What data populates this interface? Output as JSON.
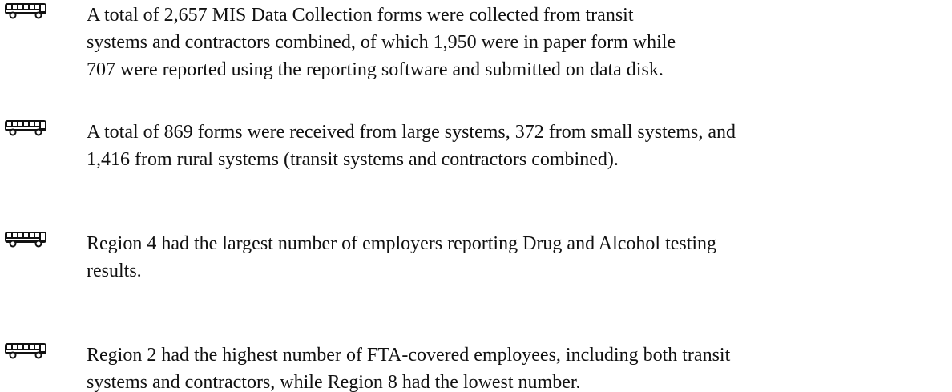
{
  "bullets": [
    {
      "lines": [
        "A total of 2,657 MIS Data Collection forms were collected from transit",
        "systems and contractors combined, of which 1,950 were in paper form while",
        "707 were reported using the reporting software and submitted on data disk."
      ]
    },
    {
      "lines": [
        "A total of 869 forms were received from large systems, 372 from small systems, and",
        "1,416 from rural systems (transit systems and contractors combined)."
      ]
    },
    {
      "lines": [
        "Region 4 had the largest number of employers reporting Drug and Alcohol testing",
        "results."
      ]
    },
    {
      "lines": [
        "Region 2 had the highest number of FTA-covered employees, including both transit",
        "systems and contractors, while Region 8 had the lowest number."
      ]
    }
  ]
}
